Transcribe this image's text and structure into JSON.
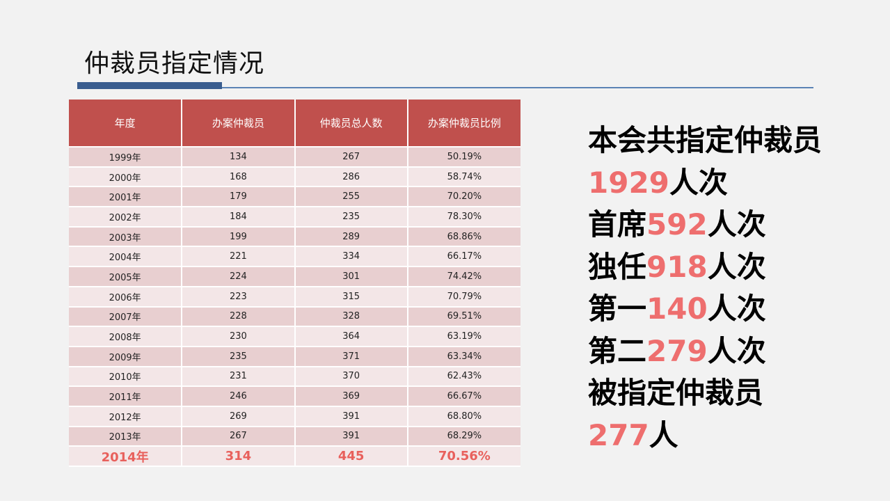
{
  "title": "仲裁员指定情况",
  "table": {
    "headers": [
      "年度",
      "办案仲裁员",
      "仲裁员总人数",
      "办案仲裁员比例"
    ],
    "rows": [
      [
        "1999年",
        "134",
        "267",
        "50.19%"
      ],
      [
        "2000年",
        "168",
        "286",
        "58.74%"
      ],
      [
        "2001年",
        "179",
        "255",
        "70.20%"
      ],
      [
        "2002年",
        "184",
        "235",
        "78.30%"
      ],
      [
        "2003年",
        "199",
        "289",
        "68.86%"
      ],
      [
        "2004年",
        "221",
        "334",
        "66.17%"
      ],
      [
        "2005年",
        "224",
        "301",
        "74.42%"
      ],
      [
        "2006年",
        "223",
        "315",
        "70.79%"
      ],
      [
        "2007年",
        "228",
        "328",
        "69.51%"
      ],
      [
        "2008年",
        "230",
        "364",
        "63.19%"
      ],
      [
        "2009年",
        "235",
        "371",
        "63.34%"
      ],
      [
        "2010年",
        "231",
        "370",
        "62.43%"
      ],
      [
        "2011年",
        "246",
        "369",
        "66.67%"
      ],
      [
        "2012年",
        "269",
        "391",
        "68.80%"
      ],
      [
        "2013年",
        "267",
        "391",
        "68.29%"
      ],
      [
        "2014年",
        "314",
        "445",
        "70.56%"
      ]
    ]
  },
  "summary": {
    "line1": "本会共指定仲裁员",
    "total_num": "1929",
    "unit_renci": "人次",
    "chief_label": "首席",
    "chief_num": "592",
    "sole_label": "独任",
    "sole_num": "918",
    "first_label": "第一",
    "first_num": "140",
    "second_label": "第二",
    "second_num": "279",
    "appointed_label": "被指定仲裁员",
    "appointed_num": "277",
    "unit_ren": "人"
  },
  "colors": {
    "header_red": "#c0504d",
    "highlight_red": "#ee6e6e",
    "accent_blue": "#3a5d8f"
  }
}
